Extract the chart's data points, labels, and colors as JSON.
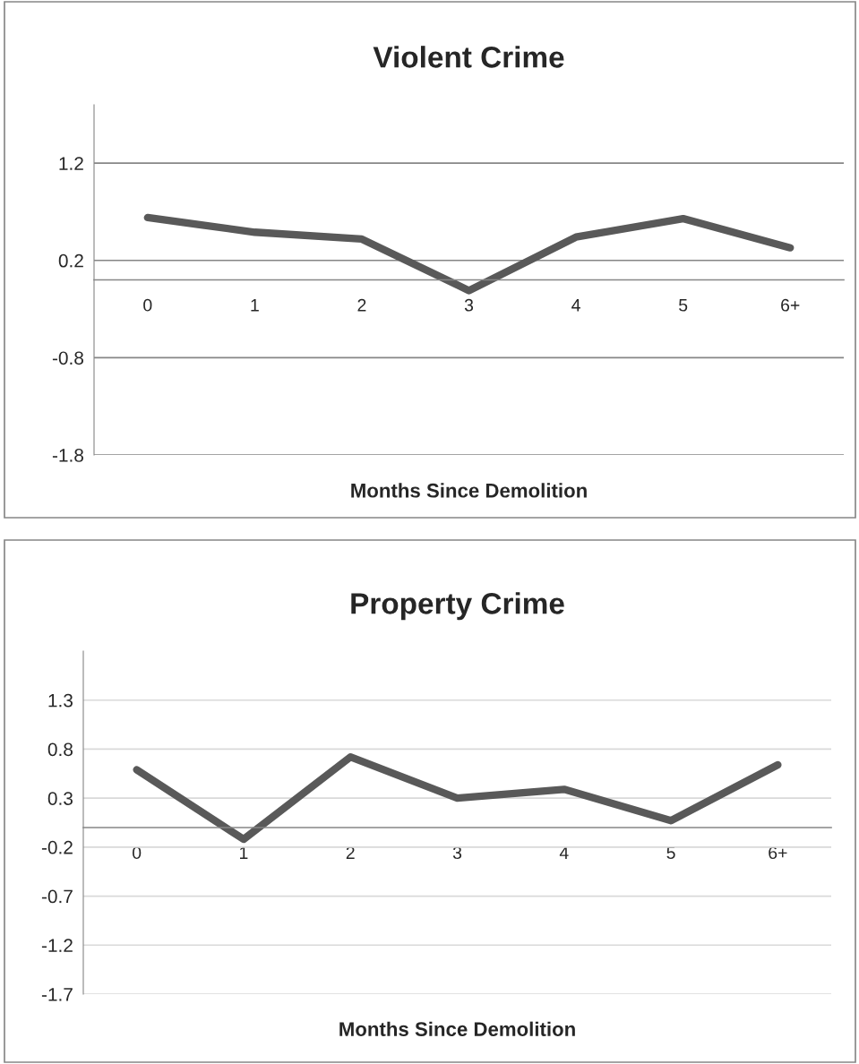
{
  "chart_data": [
    {
      "type": "line",
      "title": "Violent Crime",
      "xlabel": "Months Since Demolition",
      "categories": [
        "0",
        "1",
        "2",
        "3",
        "4",
        "5",
        "6+"
      ],
      "series": [
        {
          "color": "#595959",
          "values": [
            0.64,
            0.49,
            0.42,
            -0.11,
            0.44,
            0.63,
            0.33
          ]
        }
      ],
      "ylim": [
        -1.8,
        1.8
      ],
      "yticks": [
        -1.8,
        -0.8,
        0.2,
        1.2
      ],
      "grid": "y",
      "legend": false,
      "marker": "none",
      "line_style": "solid"
    },
    {
      "type": "line",
      "title": "Property Crime",
      "xlabel": "Months Since Demolition",
      "categories": [
        "0",
        "1",
        "2",
        "3",
        "4",
        "5",
        "6+"
      ],
      "series": [
        {
          "color": "#595959",
          "values": [
            0.59,
            -0.12,
            0.72,
            0.3,
            0.39,
            0.07,
            0.64
          ]
        }
      ],
      "ylim": [
        -1.7,
        1.8
      ],
      "yticks": [
        -1.7,
        -1.2,
        -0.7,
        -0.2,
        0.3,
        0.8,
        1.3
      ],
      "grid": "y",
      "legend": false,
      "marker": "none",
      "line_style": "solid"
    }
  ]
}
